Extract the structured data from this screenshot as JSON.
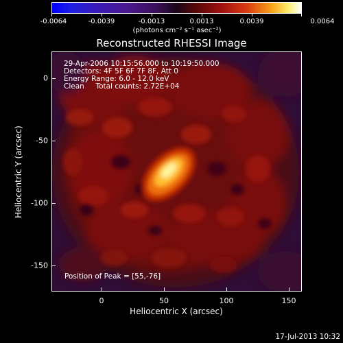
{
  "colorbar": {
    "ticks": [
      "-0.0064",
      "-0.0039",
      "-0.0013",
      "0.0013",
      "0.0039",
      "0.0064"
    ],
    "unit": "(photons cm⁻² s⁻¹ asec⁻²)"
  },
  "title": "Reconstructed RHESSI Image",
  "info": {
    "time": "29-Apr-2006 10:15:56.000 to 10:19:50.000",
    "detectors": "Detectors: 4F 5F 6F 7F 8F, Att 0",
    "energy": "Energy Range: 6.0 - 12.0 keV",
    "clean": "Clean     Total counts: 2.72E+04"
  },
  "peak": "Position of Peak = [55,-76]",
  "axes": {
    "xlabel": "Heliocentric X (arcsec)",
    "ylabel": "Heliocentric Y (arcsec)",
    "xticks": [
      "0",
      "50",
      "100",
      "150"
    ],
    "yticks": [
      "0",
      "-50",
      "-100",
      "-150"
    ]
  },
  "timestamp": "17-Jul-2013 10:32"
}
